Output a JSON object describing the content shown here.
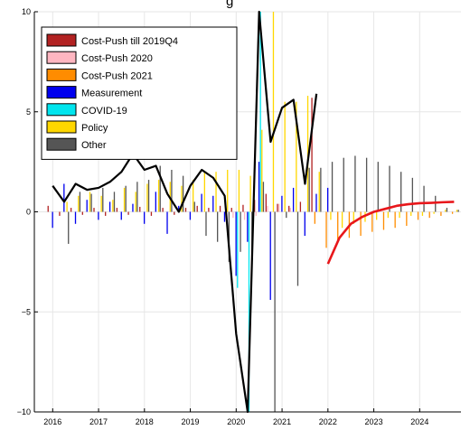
{
  "chart_data": {
    "type": "bar",
    "title": "",
    "title_partial": "g",
    "xlabel": "",
    "ylabel": "",
    "xlim": [
      2015.6,
      2024.9
    ],
    "ylim": [
      -10,
      10
    ],
    "x_ticks": [
      2016,
      2017,
      2018,
      2019,
      2020,
      2021,
      2022,
      2023,
      2024
    ],
    "x_tick_labels": [
      "2016",
      "2017",
      "2018",
      "2019",
      "2020",
      "2021",
      "2022",
      "2023",
      "2024"
    ],
    "y_ticks": [
      -10,
      -5,
      0,
      5,
      10
    ],
    "y_tick_labels": [
      "−10",
      "−5",
      "0",
      "5",
      "10"
    ],
    "grid": true,
    "legend_position": "top-left",
    "bar_series": [
      {
        "name": "Cost-Push till 2019Q4",
        "color": "#b22222",
        "x": [
          2016.0,
          2016.25,
          2016.5,
          2016.75,
          2017.0,
          2017.25,
          2017.5,
          2017.75,
          2018.0,
          2018.25,
          2018.5,
          2018.75,
          2019.0,
          2019.25,
          2019.5,
          2019.75,
          2020.0,
          2020.25,
          2020.5,
          2020.75,
          2021.0,
          2021.25,
          2021.5,
          2021.75
        ],
        "values": [
          0.3,
          -0.2,
          0.2,
          -0.15,
          0.2,
          -0.2,
          0.2,
          -0.15,
          0.25,
          -0.2,
          0.2,
          -0.15,
          0.2,
          0.3,
          0.2,
          0.3,
          0.2,
          0.35,
          0.6,
          0.9,
          0.4,
          0.3,
          0.5,
          5.7
        ]
      },
      {
        "name": "Cost-Push 2020",
        "color": "#ffb6c1",
        "x": [
          2020.0,
          2020.25,
          2020.5,
          2020.75,
          2021.0,
          2021.25
        ],
        "values": [
          -0.3,
          -0.4,
          -0.2,
          0.3,
          0.4,
          0.2
        ]
      },
      {
        "name": "Cost-Push 2021",
        "color": "#ff8c00",
        "x": [
          2021.75,
          2022.0,
          2022.25,
          2022.5,
          2022.75,
          2023.0,
          2023.25,
          2023.5,
          2023.75,
          2024.0,
          2024.25,
          2024.5,
          2024.75
        ],
        "values": [
          -0.6,
          -1.8,
          -1.5,
          -1.3,
          -1.2,
          -1.0,
          -0.9,
          -0.8,
          -0.7,
          -0.4,
          -0.3,
          -0.2,
          -0.1
        ]
      },
      {
        "name": "Measurement",
        "color": "#0000ee",
        "x": [
          2016.0,
          2016.25,
          2016.5,
          2016.75,
          2017.0,
          2017.25,
          2017.5,
          2017.75,
          2018.0,
          2018.25,
          2018.5,
          2018.75,
          2019.0,
          2019.25,
          2019.5,
          2019.75,
          2020.0,
          2020.25,
          2020.5,
          2020.75,
          2021.0,
          2021.25,
          2021.5,
          2021.75,
          2022.0
        ],
        "values": [
          -0.8,
          1.4,
          -0.6,
          0.6,
          -0.4,
          0.5,
          -0.4,
          0.4,
          -0.6,
          1.0,
          -1.1,
          0.3,
          -0.4,
          0.9,
          0.8,
          -0.5,
          -3.2,
          -1.5,
          2.5,
          -4.4,
          0.8,
          1.2,
          -1.2,
          0.9,
          1.2
        ]
      },
      {
        "name": "COVID-19",
        "color": "#00e5ee",
        "x": [
          2020.0,
          2020.25,
          2020.5
        ],
        "values": [
          -3.8,
          -10,
          10
        ]
      },
      {
        "name": "Policy",
        "color": "#ffd700",
        "x": [
          2016.25,
          2016.5,
          2016.75,
          2017.0,
          2017.25,
          2017.5,
          2017.75,
          2018.0,
          2018.25,
          2018.5,
          2018.75,
          2019.0,
          2019.25,
          2019.5,
          2019.75,
          2020.0,
          2020.25,
          2020.5,
          2020.75,
          2021.0,
          2021.25,
          2021.5,
          2021.75,
          2022.0,
          2022.25,
          2022.5,
          2022.75,
          2023.0,
          2023.25,
          2023.5,
          2023.75,
          2024.0,
          2024.25,
          2024.5,
          2024.75
        ],
        "values": [
          0.5,
          0.8,
          1.0,
          0.8,
          0.6,
          1.2,
          1.0,
          1.4,
          1.6,
          1.5,
          1.3,
          1.6,
          2.0,
          2.0,
          2.1,
          2.1,
          1.8,
          4.1,
          10,
          5.5,
          5.5,
          5.8,
          2.0,
          -0.4,
          -0.8,
          -0.6,
          -0.5,
          -0.4,
          -0.3,
          -0.3,
          -0.2,
          -0.2,
          -0.1,
          0.1,
          0.1
        ]
      },
      {
        "name": "Other",
        "color": "#555555",
        "x": [
          2016.25,
          2016.5,
          2016.75,
          2017.0,
          2017.25,
          2017.5,
          2017.75,
          2018.0,
          2018.25,
          2018.5,
          2018.75,
          2019.0,
          2019.25,
          2019.5,
          2019.75,
          2020.0,
          2020.25,
          2020.5,
          2020.75,
          2021.0,
          2021.25,
          2021.5,
          2021.75,
          2022.0,
          2022.25,
          2022.5,
          2022.75,
          2023.0,
          2023.25,
          2023.5,
          2023.75,
          2024.0,
          2024.25,
          2024.5,
          2024.75
        ],
        "values": [
          -1.6,
          1.0,
          0.9,
          1.2,
          1.0,
          1.3,
          1.5,
          1.6,
          2.3,
          2.1,
          1.8,
          0.5,
          -1.2,
          -1.5,
          -2.5,
          -2.0,
          -3.0,
          1.5,
          -10,
          -0.3,
          -3.7,
          2.2,
          2.2,
          2.5,
          2.7,
          2.8,
          2.7,
          2.5,
          2.3,
          2.0,
          1.7,
          1.3,
          0.8,
          0.2,
          0.1
        ]
      }
    ],
    "line_series": [
      {
        "name": "",
        "color": "#000000",
        "x": [
          2016.0,
          2016.25,
          2016.5,
          2016.75,
          2017.0,
          2017.25,
          2017.5,
          2017.75,
          2018.0,
          2018.25,
          2018.5,
          2018.75,
          2019.0,
          2019.25,
          2019.5,
          2019.75,
          2020.0,
          2020.25,
          2020.5,
          2020.75,
          2021.0,
          2021.25,
          2021.5,
          2021.75
        ],
        "values": [
          1.3,
          0.5,
          1.4,
          1.1,
          1.2,
          1.5,
          2.0,
          2.9,
          2.1,
          2.3,
          0.9,
          0.0,
          1.3,
          2.1,
          1.7,
          0.8,
          -6.1,
          -10,
          10,
          3.5,
          5.2,
          5.6,
          1.4,
          5.9
        ]
      },
      {
        "name": "",
        "color": "#e8171b",
        "x": [
          2022.0,
          2022.25,
          2022.5,
          2022.75,
          2023.0,
          2023.25,
          2023.5,
          2023.75,
          2024.0,
          2024.25,
          2024.5,
          2024.75
        ],
        "values": [
          -2.6,
          -1.3,
          -0.6,
          -0.25,
          0.0,
          0.15,
          0.3,
          0.38,
          0.43,
          0.45,
          0.48,
          0.5
        ]
      }
    ]
  }
}
